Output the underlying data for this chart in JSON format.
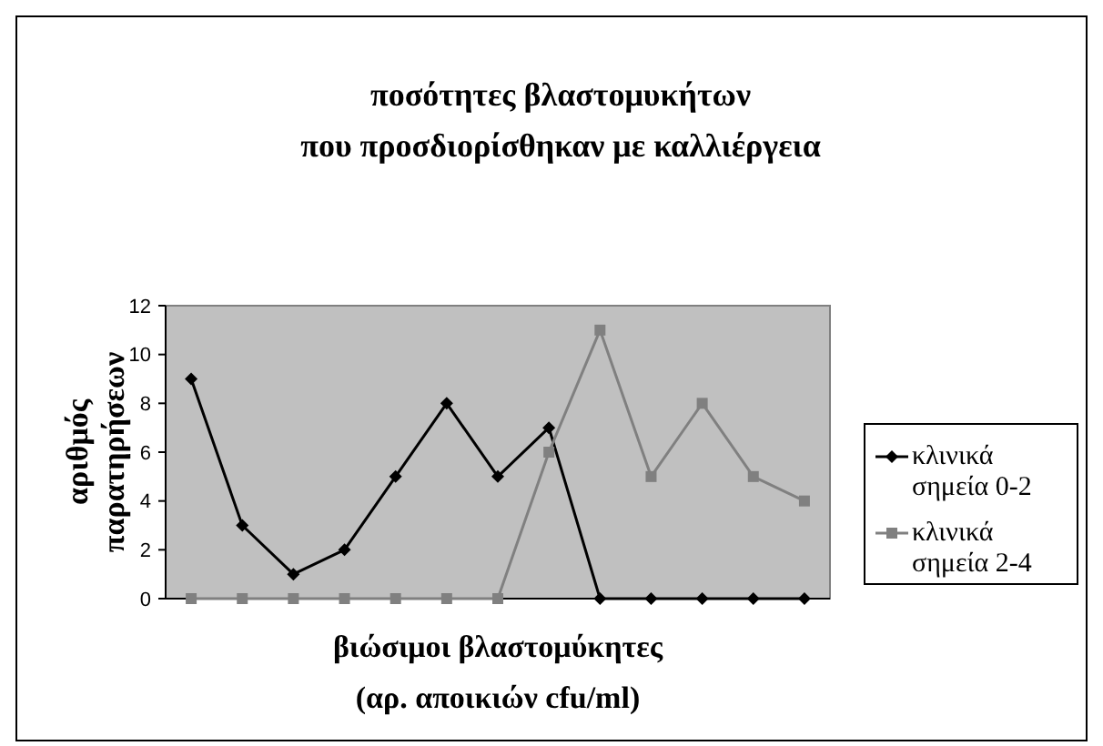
{
  "chart_data": {
    "type": "line",
    "title": "ποσότητες βλαστομυκήτων\nπου προσδιορίσθηκαν με καλλιέργεια",
    "xlabel": "βιώσιμοι βλαστομύκητες\n(αρ. αποικιών cfu/ml)",
    "ylabel": "αριθμός\nπαρατηρήσεων",
    "categories": [
      null,
      null,
      null,
      null,
      null,
      null,
      null,
      null,
      null,
      null,
      null,
      null,
      null
    ],
    "series": [
      {
        "name": "κλινικά\nσημεία 0-2",
        "color": "#000000",
        "marker": "diamond",
        "values": [
          9,
          3,
          1,
          2,
          5,
          8,
          5,
          7,
          0,
          0,
          0,
          0,
          0
        ]
      },
      {
        "name": "κλινικά\nσημεία 2-4",
        "color": "#808080",
        "marker": "square",
        "values": [
          0,
          0,
          0,
          0,
          0,
          0,
          0,
          6,
          11,
          5,
          8,
          5,
          4
        ]
      }
    ],
    "ylim": [
      0,
      12
    ],
    "yticks": [
      0,
      2,
      4,
      6,
      8,
      10,
      12
    ],
    "grid": false,
    "legend": "right"
  }
}
